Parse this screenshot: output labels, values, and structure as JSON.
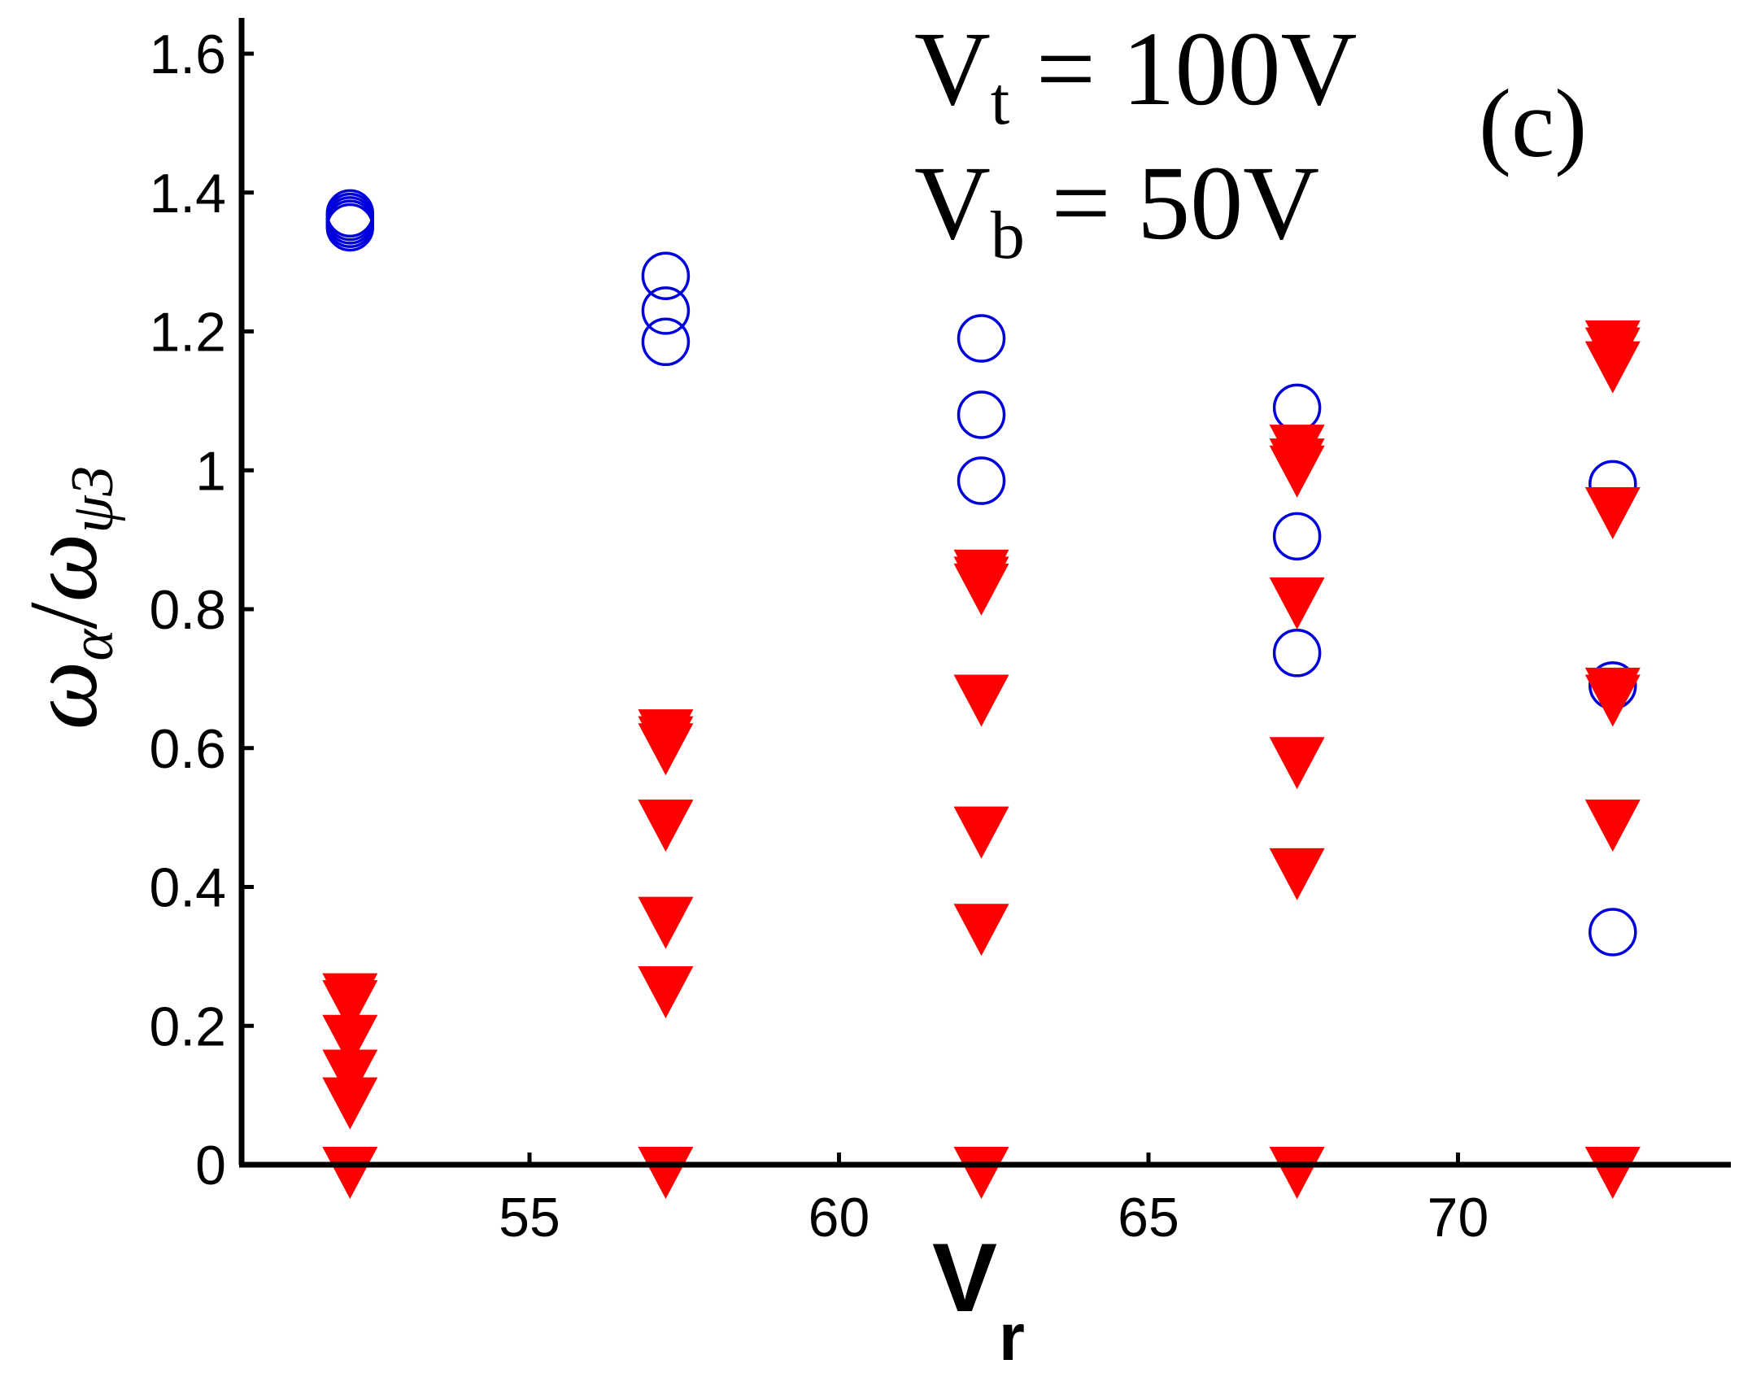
{
  "chart_data": {
    "type": "scatter",
    "panel_label": "(c)",
    "annotations": [
      {
        "symbol": "V",
        "subscript": "t",
        "rest": " = 100V"
      },
      {
        "symbol": "V",
        "subscript": "b",
        "rest": " = 50V"
      }
    ],
    "xlabel": {
      "main": "V",
      "sub": "r"
    },
    "ylabel": {
      "num_sym": "ω",
      "num_sub": "α",
      "sep": "/",
      "den_sym": "ω",
      "den_sub": "ψ3"
    },
    "xlim": [
      50.2,
      74.5
    ],
    "ylim": [
      0,
      1.65
    ],
    "xticks": [
      55,
      60,
      65,
      70
    ],
    "xtick_labels": [
      "55",
      "60",
      "65",
      "70"
    ],
    "yticks": [
      0,
      0.2,
      0.4,
      0.6,
      0.8,
      1.0,
      1.2,
      1.4,
      1.6
    ],
    "ytick_labels": [
      "0",
      "0.2",
      "0.4",
      "0.6",
      "0.8",
      "1",
      "1.2",
      "1.4",
      "1.6"
    ],
    "grid": false,
    "series": [
      {
        "name": "circles",
        "marker": "open-circle",
        "color": "#0000dd",
        "points": [
          {
            "x": 52.1,
            "y": 1.37
          },
          {
            "x": 52.1,
            "y": 1.365
          },
          {
            "x": 52.1,
            "y": 1.36
          },
          {
            "x": 52.1,
            "y": 1.355
          },
          {
            "x": 52.1,
            "y": 1.35
          },
          {
            "x": 57.2,
            "y": 1.28
          },
          {
            "x": 57.2,
            "y": 1.23
          },
          {
            "x": 57.2,
            "y": 1.185
          },
          {
            "x": 62.3,
            "y": 1.19
          },
          {
            "x": 62.3,
            "y": 1.08
          },
          {
            "x": 62.3,
            "y": 0.985
          },
          {
            "x": 67.4,
            "y": 1.09
          },
          {
            "x": 67.4,
            "y": 0.905
          },
          {
            "x": 67.4,
            "y": 0.737
          },
          {
            "x": 72.5,
            "y": 0.98
          },
          {
            "x": 72.5,
            "y": 0.69
          },
          {
            "x": 72.5,
            "y": 0.335
          }
        ]
      },
      {
        "name": "triangles",
        "marker": "filled-triangle-down",
        "color": "#ff0000",
        "points": [
          {
            "x": 52.1,
            "y": 0.25
          },
          {
            "x": 52.1,
            "y": 0.24
          },
          {
            "x": 52.1,
            "y": 0.19
          },
          {
            "x": 52.1,
            "y": 0.14
          },
          {
            "x": 52.1,
            "y": 0.1
          },
          {
            "x": 52.1,
            "y": 0.0
          },
          {
            "x": 57.2,
            "y": 0.63
          },
          {
            "x": 57.2,
            "y": 0.62
          },
          {
            "x": 57.2,
            "y": 0.61
          },
          {
            "x": 57.2,
            "y": 0.5
          },
          {
            "x": 57.2,
            "y": 0.36
          },
          {
            "x": 57.2,
            "y": 0.26
          },
          {
            "x": 57.2,
            "y": 0.0
          },
          {
            "x": 62.3,
            "y": 0.86
          },
          {
            "x": 62.3,
            "y": 0.85
          },
          {
            "x": 62.3,
            "y": 0.84
          },
          {
            "x": 62.3,
            "y": 0.68
          },
          {
            "x": 62.3,
            "y": 0.49
          },
          {
            "x": 62.3,
            "y": 0.35
          },
          {
            "x": 62.3,
            "y": 0.0
          },
          {
            "x": 67.4,
            "y": 1.04
          },
          {
            "x": 67.4,
            "y": 1.02
          },
          {
            "x": 67.4,
            "y": 1.01
          },
          {
            "x": 67.4,
            "y": 0.82
          },
          {
            "x": 67.4,
            "y": 0.59
          },
          {
            "x": 67.4,
            "y": 0.43
          },
          {
            "x": 67.4,
            "y": 0.0
          },
          {
            "x": 72.5,
            "y": 1.19
          },
          {
            "x": 72.5,
            "y": 1.18
          },
          {
            "x": 72.5,
            "y": 1.16
          },
          {
            "x": 72.5,
            "y": 0.95
          },
          {
            "x": 72.5,
            "y": 0.69
          },
          {
            "x": 72.5,
            "y": 0.68
          },
          {
            "x": 72.5,
            "y": 0.5
          },
          {
            "x": 72.5,
            "y": 0.0
          }
        ]
      }
    ]
  }
}
